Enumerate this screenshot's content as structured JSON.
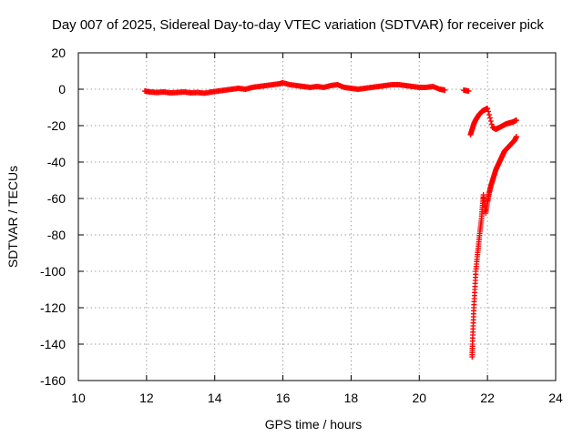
{
  "chart_data": {
    "type": "scatter",
    "title": "Day 007 of 2025, Sidereal Day-to-day VTEC variation (SDTVAR) for receiver pick",
    "xlabel": "GPS time / hours",
    "ylabel": "SDTVAR / TECUs",
    "xlim": [
      10,
      24
    ],
    "ylim": [
      -160,
      20
    ],
    "xticks": [
      10,
      12,
      14,
      16,
      18,
      20,
      22,
      24
    ],
    "yticks": [
      20,
      0,
      -20,
      -40,
      -60,
      -80,
      -100,
      -120,
      -140,
      -160
    ],
    "grid": true,
    "legend": "none",
    "marker": "plus",
    "color": "#ff0000",
    "series": [
      {
        "points": [
          [
            11.95,
            -1
          ],
          [
            12.1,
            -1.5
          ],
          [
            12.3,
            -1.8
          ],
          [
            12.5,
            -1.5
          ],
          [
            12.7,
            -2
          ],
          [
            12.9,
            -1.8
          ],
          [
            13.1,
            -1.5
          ],
          [
            13.3,
            -2
          ],
          [
            13.5,
            -1.8
          ],
          [
            13.7,
            -2.2
          ],
          [
            13.9,
            -1.5
          ],
          [
            14.1,
            -1
          ],
          [
            14.3,
            -0.5
          ],
          [
            14.5,
            0
          ],
          [
            14.7,
            0.5
          ],
          [
            14.9,
            0
          ],
          [
            15.1,
            1
          ],
          [
            15.3,
            1.5
          ],
          [
            15.5,
            2
          ],
          [
            15.7,
            2.5
          ],
          [
            15.9,
            3
          ],
          [
            16.0,
            3.5
          ],
          [
            16.2,
            2.5
          ],
          [
            16.4,
            2
          ],
          [
            16.6,
            1.5
          ],
          [
            16.8,
            1
          ],
          [
            17.0,
            1.5
          ],
          [
            17.2,
            1
          ],
          [
            17.4,
            2
          ],
          [
            17.6,
            2.5
          ],
          [
            17.8,
            1
          ],
          [
            18.0,
            0.5
          ],
          [
            18.2,
            0
          ],
          [
            18.4,
            0.5
          ],
          [
            18.6,
            1
          ],
          [
            18.8,
            1.5
          ],
          [
            19.0,
            2
          ],
          [
            19.2,
            2.5
          ],
          [
            19.4,
            2.5
          ],
          [
            19.6,
            2
          ],
          [
            19.8,
            1.5
          ],
          [
            20.0,
            1
          ],
          [
            20.2,
            1
          ],
          [
            20.4,
            1.5
          ],
          [
            20.6,
            0
          ],
          [
            20.75,
            -0.5
          ],
          [
            21.3,
            -0.5
          ],
          [
            21.45,
            -1
          ]
        ]
      },
      {
        "points": [
          [
            21.5,
            -25
          ],
          [
            21.55,
            -22
          ],
          [
            21.6,
            -19
          ],
          [
            21.65,
            -17
          ],
          [
            21.7,
            -15.5
          ],
          [
            21.75,
            -14
          ],
          [
            21.8,
            -13
          ],
          [
            21.85,
            -12
          ],
          [
            21.9,
            -11.5
          ],
          [
            21.95,
            -11
          ],
          [
            22.0,
            -10.5
          ],
          [
            22.15,
            -21
          ],
          [
            22.25,
            -22
          ],
          [
            22.35,
            -21
          ],
          [
            22.45,
            -20
          ],
          [
            22.55,
            -19
          ],
          [
            22.65,
            -18.5
          ],
          [
            22.75,
            -18
          ],
          [
            22.85,
            -17
          ]
        ]
      },
      {
        "points": [
          [
            21.55,
            -147
          ],
          [
            21.56,
            -140
          ],
          [
            21.58,
            -130
          ],
          [
            21.6,
            -120
          ],
          [
            21.63,
            -110
          ],
          [
            21.66,
            -100
          ],
          [
            21.7,
            -92
          ],
          [
            21.74,
            -85
          ],
          [
            21.78,
            -78
          ],
          [
            21.82,
            -72
          ],
          [
            21.85,
            -65
          ],
          [
            21.88,
            -58
          ],
          [
            21.95,
            -68
          ],
          [
            22.0,
            -62
          ],
          [
            22.05,
            -57
          ],
          [
            22.1,
            -53
          ],
          [
            22.15,
            -50
          ],
          [
            22.2,
            -47
          ],
          [
            22.25,
            -44
          ],
          [
            22.3,
            -42
          ],
          [
            22.35,
            -40
          ],
          [
            22.4,
            -38
          ],
          [
            22.45,
            -36
          ],
          [
            22.5,
            -34
          ],
          [
            22.55,
            -33
          ],
          [
            22.6,
            -32
          ],
          [
            22.65,
            -31
          ],
          [
            22.7,
            -30
          ],
          [
            22.75,
            -29
          ],
          [
            22.8,
            -28
          ],
          [
            22.85,
            -26
          ]
        ]
      }
    ]
  }
}
